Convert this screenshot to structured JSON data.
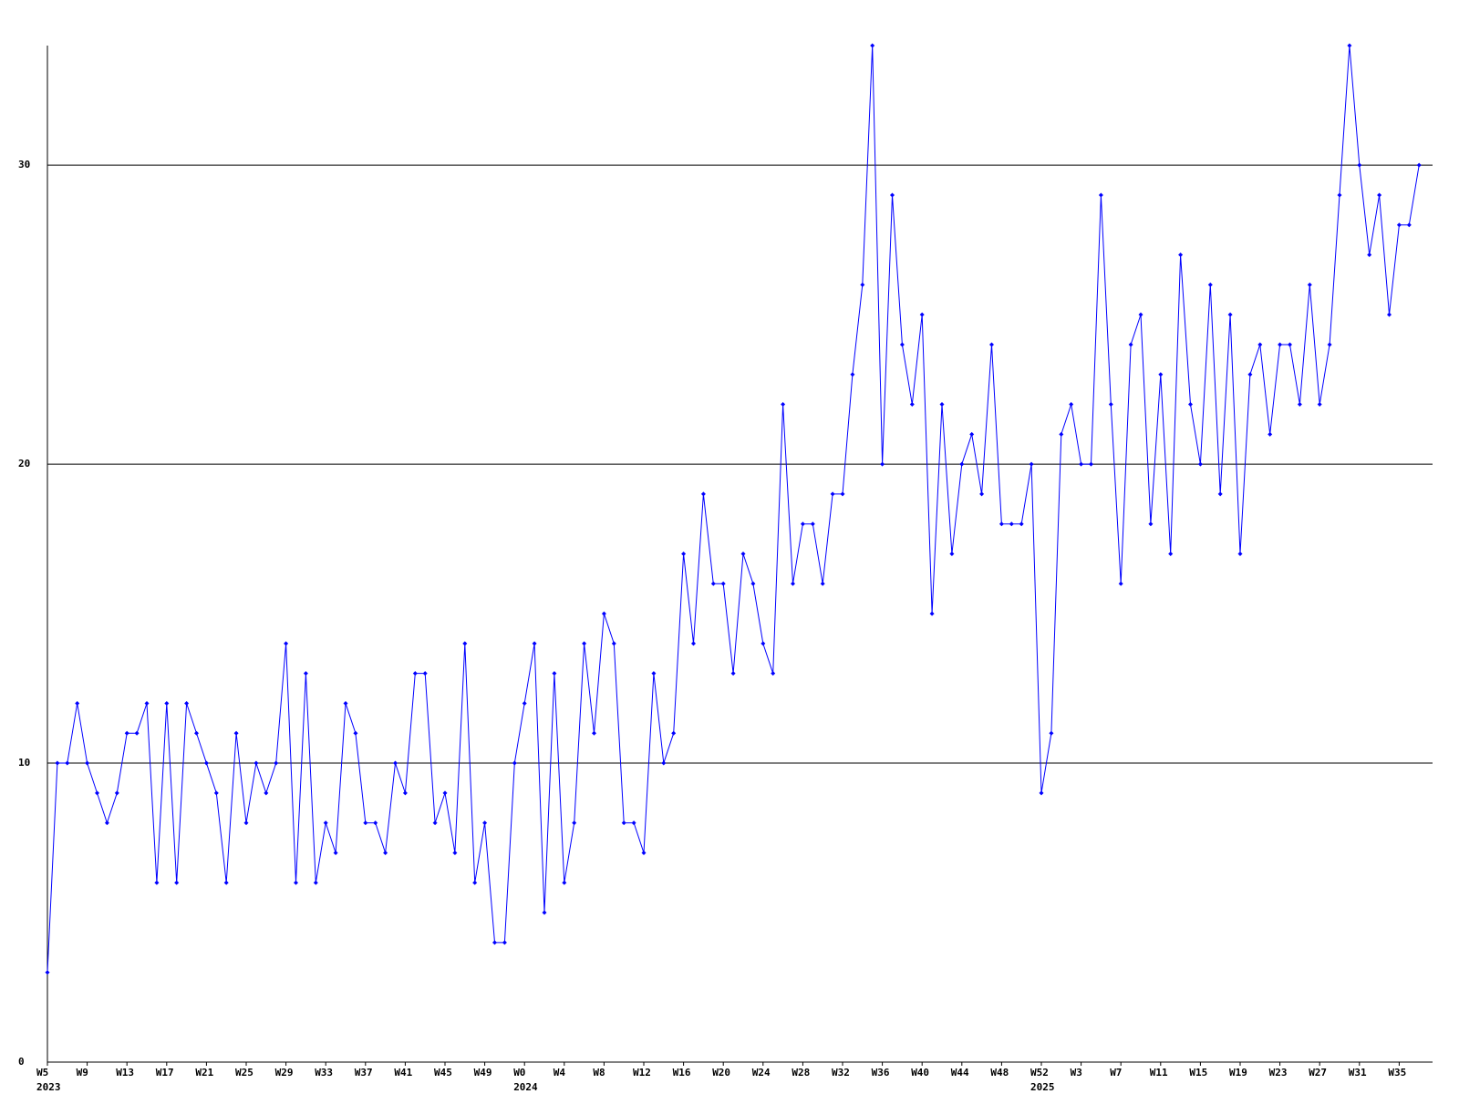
{
  "chart_data": {
    "type": "line",
    "categories": [
      "W5",
      null,
      null,
      null,
      "W9",
      null,
      null,
      null,
      "W13",
      null,
      null,
      null,
      "W17",
      null,
      null,
      null,
      "W21",
      null,
      null,
      null,
      "W25",
      null,
      null,
      null,
      "W29",
      null,
      null,
      null,
      "W33",
      null,
      null,
      null,
      "W37",
      null,
      null,
      null,
      "W41",
      null,
      null,
      null,
      "W45",
      null,
      null,
      null,
      "W49",
      null,
      null,
      null,
      "W0",
      null,
      null,
      null,
      "W4",
      null,
      null,
      null,
      "W8",
      null,
      null,
      null,
      "W12",
      null,
      null,
      null,
      "W16",
      null,
      null,
      null,
      "W20",
      null,
      null,
      null,
      "W24",
      null,
      null,
      null,
      "W28",
      null,
      null,
      null,
      "W32",
      null,
      null,
      null,
      "W36",
      null,
      null,
      null,
      "W40",
      null,
      null,
      null,
      "W44",
      null,
      null,
      null,
      "W48",
      null,
      null,
      null,
      "W52",
      null,
      null,
      null,
      "W3",
      null,
      null,
      null,
      "W7",
      null,
      null,
      null,
      "W11",
      null,
      null,
      null,
      "W15",
      null,
      null,
      null,
      "W19",
      null,
      null,
      null,
      "W23",
      null,
      null,
      null,
      "W27",
      null,
      null,
      null,
      "W31",
      null,
      null,
      null,
      "W35",
      null,
      null
    ],
    "category_years": [
      "2023",
      null,
      null,
      null,
      null,
      null,
      null,
      null,
      null,
      null,
      null,
      null,
      null,
      null,
      null,
      null,
      null,
      null,
      null,
      null,
      null,
      null,
      null,
      null,
      null,
      null,
      null,
      null,
      null,
      null,
      null,
      null,
      null,
      null,
      null,
      null,
      null,
      null,
      null,
      null,
      null,
      null,
      null,
      null,
      null,
      null,
      null,
      null,
      "2024",
      null,
      null,
      null,
      null,
      null,
      null,
      null,
      null,
      null,
      null,
      null,
      null,
      null,
      null,
      null,
      null,
      null,
      null,
      null,
      null,
      null,
      null,
      null,
      null,
      null,
      null,
      null,
      null,
      null,
      null,
      null,
      null,
      null,
      null,
      null,
      null,
      null,
      null,
      null,
      null,
      null,
      null,
      null,
      null,
      null,
      null,
      null,
      null,
      null,
      null,
      null,
      "2025",
      null,
      null,
      null,
      null,
      null,
      null,
      null,
      null,
      null,
      null,
      null,
      null,
      null,
      null,
      null,
      null,
      null,
      null,
      null,
      null,
      null,
      null,
      null,
      null,
      null,
      null,
      null,
      null,
      null,
      null,
      null,
      null,
      null,
      null,
      null,
      null,
      null,
      null
    ],
    "values": [
      3,
      10,
      10,
      12,
      10,
      9,
      8,
      9,
      11,
      11,
      12,
      6,
      12,
      6,
      12,
      11,
      10,
      9,
      6,
      11,
      8,
      10,
      9,
      10,
      14,
      6,
      13,
      6,
      8,
      7,
      12,
      11,
      8,
      8,
      7,
      10,
      9,
      13,
      13,
      8,
      9,
      7,
      14,
      6,
      8,
      4,
      4,
      10,
      12,
      14,
      5,
      13,
      6,
      8,
      14,
      11,
      15,
      14,
      8,
      8,
      7,
      13,
      10,
      11,
      17,
      14,
      19,
      16,
      16,
      13,
      17,
      16,
      14,
      13,
      22,
      16,
      18,
      18,
      16,
      19,
      19,
      23,
      26,
      34,
      20,
      29,
      24,
      22,
      25,
      15,
      22,
      17,
      20,
      21,
      19,
      24,
      18,
      18,
      18,
      20,
      9,
      11,
      21,
      22,
      20,
      20,
      29,
      22,
      16,
      24,
      25,
      18,
      23,
      17,
      27,
      22,
      20,
      26,
      19,
      25,
      17,
      23,
      24,
      21,
      24,
      24,
      22,
      26,
      22,
      24,
      29,
      34,
      30,
      27,
      29,
      25,
      28,
      28,
      30
    ],
    "color": "#0000ff",
    "grid_color": "#000000",
    "ylim": [
      0,
      34
    ],
    "yticks": [
      0,
      10,
      20,
      30
    ],
    "grid": true
  }
}
